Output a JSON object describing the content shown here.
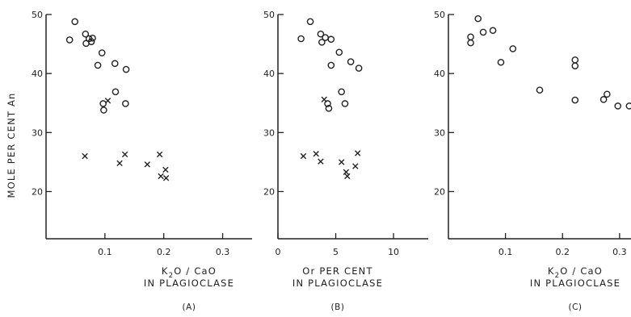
{
  "figure": {
    "ylabel": "MOLE PER CENT An"
  },
  "chart_data": [
    {
      "type": "scatter",
      "panel_label": "(A)",
      "xlabel_line1": "K2O / CaO",
      "xlabel_line2": "IN PLAGIOCLASE",
      "xlim": [
        0,
        0.35
      ],
      "ylim": [
        12,
        50
      ],
      "xticks": [
        {
          "value": 0.1,
          "label": "0.1"
        },
        {
          "value": 0.2,
          "label": "0.2"
        },
        {
          "value": 0.3,
          "label": "0.3"
        }
      ],
      "yticks": [
        {
          "value": 20,
          "label": "20"
        },
        {
          "value": 30,
          "label": "30"
        },
        {
          "value": 40,
          "label": "40"
        },
        {
          "value": 50,
          "label": "50"
        }
      ],
      "series": [
        {
          "marker": "circle",
          "points": [
            {
              "x": 0.04,
              "y": 45.7
            },
            {
              "x": 0.049,
              "y": 48.8
            },
            {
              "x": 0.067,
              "y": 46.7
            },
            {
              "x": 0.068,
              "y": 45.1
            },
            {
              "x": 0.073,
              "y": 45.9
            },
            {
              "x": 0.077,
              "y": 45.4
            },
            {
              "x": 0.079,
              "y": 46.0
            },
            {
              "x": 0.088,
              "y": 41.4
            },
            {
              "x": 0.095,
              "y": 43.5
            },
            {
              "x": 0.097,
              "y": 34.9
            },
            {
              "x": 0.098,
              "y": 33.8
            },
            {
              "x": 0.117,
              "y": 41.7
            },
            {
              "x": 0.118,
              "y": 36.9
            },
            {
              "x": 0.135,
              "y": 34.9
            },
            {
              "x": 0.136,
              "y": 40.7
            }
          ]
        },
        {
          "marker": "cross",
          "points": [
            {
              "x": 0.066,
              "y": 26.0
            },
            {
              "x": 0.105,
              "y": 35.4
            },
            {
              "x": 0.125,
              "y": 24.8
            },
            {
              "x": 0.134,
              "y": 26.3
            },
            {
              "x": 0.172,
              "y": 24.6
            },
            {
              "x": 0.193,
              "y": 26.3
            },
            {
              "x": 0.195,
              "y": 22.6
            },
            {
              "x": 0.203,
              "y": 23.7
            },
            {
              "x": 0.204,
              "y": 22.3
            }
          ]
        }
      ]
    },
    {
      "type": "scatter",
      "panel_label": "(B)",
      "xlabel_line1": "Or PER CENT",
      "xlabel_line2": "IN PLAGIOCLASE",
      "xlim": [
        0,
        13
      ],
      "ylim": [
        12,
        50
      ],
      "xticks": [
        {
          "value": 0,
          "label": "0"
        },
        {
          "value": 5,
          "label": "5"
        },
        {
          "value": 10,
          "label": "10"
        }
      ],
      "yticks": [
        {
          "value": 20,
          "label": "20"
        },
        {
          "value": 30,
          "label": "30"
        },
        {
          "value": 40,
          "label": "40"
        },
        {
          "value": 50,
          "label": "50"
        }
      ],
      "series": [
        {
          "marker": "circle",
          "points": [
            {
              "x": 2.0,
              "y": 45.9
            },
            {
              "x": 2.8,
              "y": 48.8
            },
            {
              "x": 3.7,
              "y": 46.7
            },
            {
              "x": 3.8,
              "y": 45.3
            },
            {
              "x": 4.1,
              "y": 46.1
            },
            {
              "x": 4.3,
              "y": 34.9
            },
            {
              "x": 4.4,
              "y": 34.1
            },
            {
              "x": 4.6,
              "y": 41.4
            },
            {
              "x": 4.6,
              "y": 45.8
            },
            {
              "x": 5.3,
              "y": 43.6
            },
            {
              "x": 5.5,
              "y": 36.9
            },
            {
              "x": 5.8,
              "y": 34.9
            },
            {
              "x": 6.3,
              "y": 42.0
            },
            {
              "x": 7.0,
              "y": 40.9
            }
          ]
        },
        {
          "marker": "cross",
          "points": [
            {
              "x": 2.2,
              "y": 26.0
            },
            {
              "x": 3.3,
              "y": 26.4
            },
            {
              "x": 3.7,
              "y": 25.1
            },
            {
              "x": 4.0,
              "y": 35.6
            },
            {
              "x": 5.5,
              "y": 25.0
            },
            {
              "x": 5.9,
              "y": 23.3
            },
            {
              "x": 6.0,
              "y": 22.6
            },
            {
              "x": 6.7,
              "y": 24.3
            },
            {
              "x": 6.9,
              "y": 26.5
            }
          ]
        }
      ]
    },
    {
      "type": "scatter",
      "panel_label": "(C)",
      "xlabel_line1": "K2O / CaO",
      "xlabel_line2": "IN PLAGIOCLASE",
      "xlim": [
        0,
        0.32
      ],
      "ylim": [
        12,
        50
      ],
      "xticks": [
        {
          "value": 0.1,
          "label": "0.1"
        },
        {
          "value": 0.2,
          "label": "0.2"
        },
        {
          "value": 0.3,
          "label": "0.3"
        }
      ],
      "yticks": [
        {
          "value": 20,
          "label": "20"
        },
        {
          "value": 30,
          "label": "30"
        },
        {
          "value": 40,
          "label": "40"
        },
        {
          "value": 50,
          "label": "50"
        }
      ],
      "series": [
        {
          "marker": "circle",
          "points": [
            {
              "x": 0.039,
              "y": 46.2
            },
            {
              "x": 0.039,
              "y": 45.2
            },
            {
              "x": 0.052,
              "y": 49.3
            },
            {
              "x": 0.061,
              "y": 47.0
            },
            {
              "x": 0.078,
              "y": 47.3
            },
            {
              "x": 0.092,
              "y": 41.9
            },
            {
              "x": 0.113,
              "y": 44.2
            },
            {
              "x": 0.16,
              "y": 37.2
            },
            {
              "x": 0.222,
              "y": 42.3
            },
            {
              "x": 0.222,
              "y": 41.3
            },
            {
              "x": 0.222,
              "y": 35.5
            },
            {
              "x": 0.272,
              "y": 35.6
            },
            {
              "x": 0.278,
              "y": 36.5
            },
            {
              "x": 0.297,
              "y": 34.5
            },
            {
              "x": 0.317,
              "y": 34.5
            }
          ]
        }
      ]
    }
  ]
}
